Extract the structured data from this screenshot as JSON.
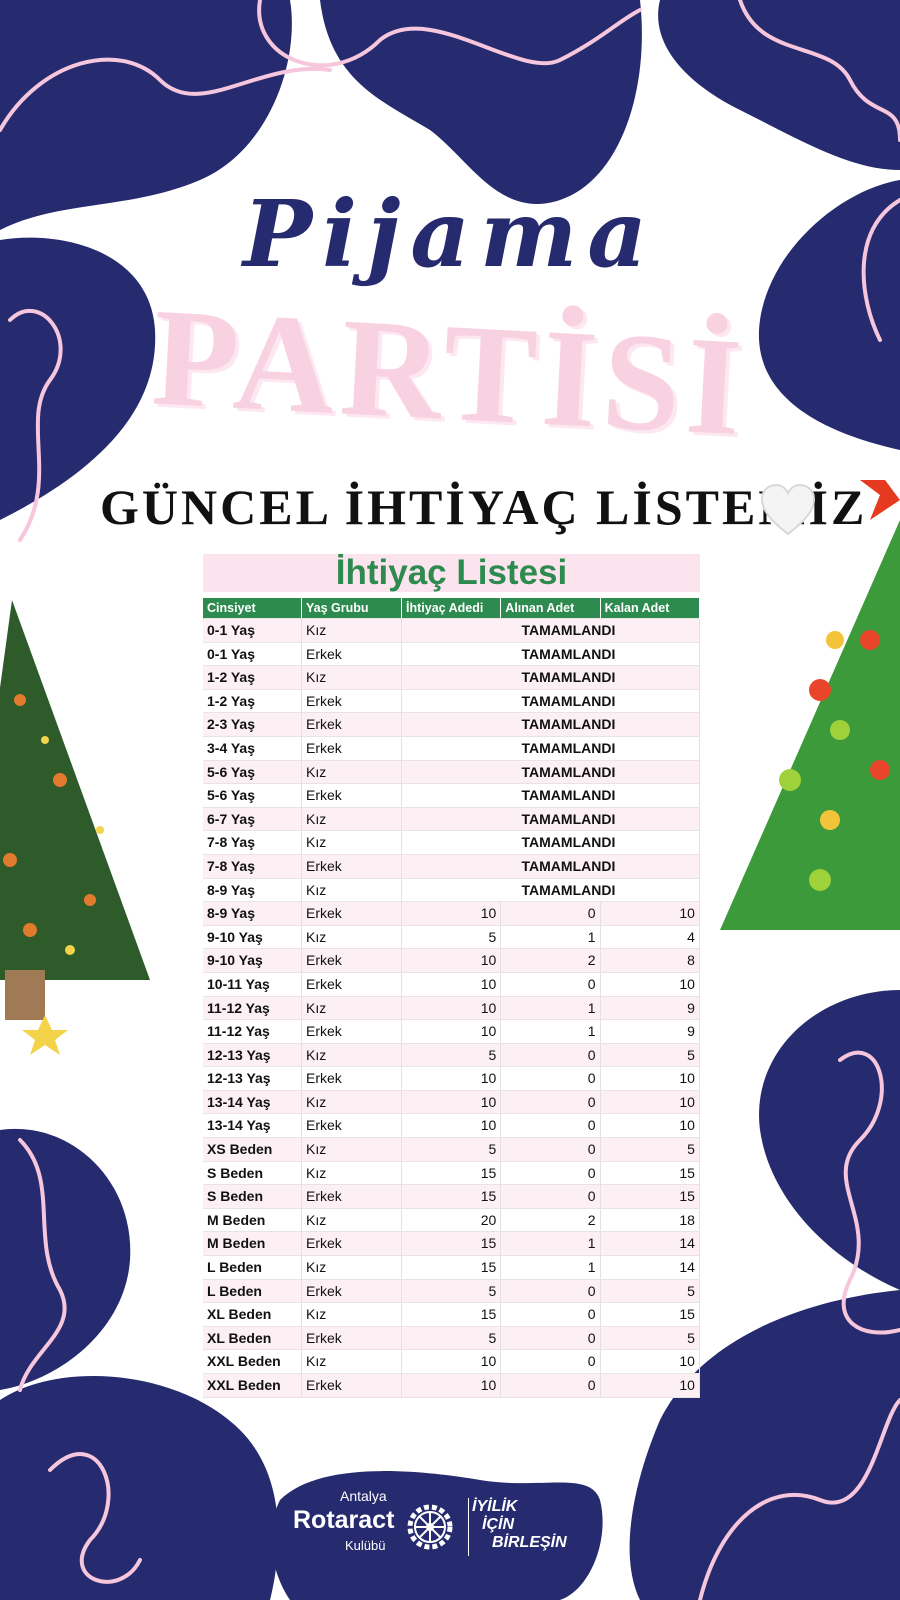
{
  "poster": {
    "title_script": "Pijama",
    "title_big": "PARTİSİ",
    "subtitle": "GÜNCEL İHTİYAÇ LİSTEMİZ",
    "heart_icon": "white-heart-icon",
    "colors": {
      "navy": "#262a6e",
      "pink": "#f9d2e2",
      "green": "#2e8b4f",
      "row_pink": "#fdf0f5"
    }
  },
  "table": {
    "title": "İhtiyaç Listesi",
    "columns": [
      "Cinsiyet",
      "Yaş Grubu",
      "İhtiyaç Adedi",
      "Alınan Adet",
      "Kalan Adet"
    ],
    "rows": [
      {
        "group": "0-1 Yaş",
        "gender": "Kız",
        "status": "TAMAMLANDI"
      },
      {
        "group": "0-1 Yaş",
        "gender": "Erkek",
        "status": "TAMAMLANDI"
      },
      {
        "group": "1-2 Yaş",
        "gender": "Kız",
        "status": "TAMAMLANDI"
      },
      {
        "group": "1-2 Yaş",
        "gender": "Erkek",
        "status": "TAMAMLANDI"
      },
      {
        "group": "2-3 Yaş",
        "gender": "Erkek",
        "status": "TAMAMLANDI"
      },
      {
        "group": "3-4 Yaş",
        "gender": "Erkek",
        "status": "TAMAMLANDI"
      },
      {
        "group": "5-6 Yaş",
        "gender": "Kız",
        "status": "TAMAMLANDI"
      },
      {
        "group": "5-6 Yaş",
        "gender": "Erkek",
        "status": "TAMAMLANDI"
      },
      {
        "group": "6-7 Yaş",
        "gender": "Kız",
        "status": "TAMAMLANDI"
      },
      {
        "group": "7-8 Yaş",
        "gender": "Kız",
        "status": "TAMAMLANDI"
      },
      {
        "group": "7-8 Yaş",
        "gender": "Erkek",
        "status": "TAMAMLANDI"
      },
      {
        "group": "8-9 Yaş",
        "gender": "Kız",
        "status": "TAMAMLANDI"
      },
      {
        "group": "8-9 Yaş",
        "gender": "Erkek",
        "need": "10",
        "received": "0",
        "remaining": "10"
      },
      {
        "group": "9-10 Yaş",
        "gender": "Kız",
        "need": "5",
        "received": "1",
        "remaining": "4"
      },
      {
        "group": "9-10 Yaş",
        "gender": "Erkek",
        "need": "10",
        "received": "2",
        "remaining": "8"
      },
      {
        "group": "10-11 Yaş",
        "gender": "Erkek",
        "need": "10",
        "received": "0",
        "remaining": "10"
      },
      {
        "group": "11-12 Yaş",
        "gender": "Kız",
        "need": "10",
        "received": "1",
        "remaining": "9"
      },
      {
        "group": "11-12 Yaş",
        "gender": "Erkek",
        "need": "10",
        "received": "1",
        "remaining": "9"
      },
      {
        "group": "12-13 Yaş",
        "gender": "Kız",
        "need": "5",
        "received": "0",
        "remaining": "5"
      },
      {
        "group": "12-13 Yaş",
        "gender": "Erkek",
        "need": "10",
        "received": "0",
        "remaining": "10"
      },
      {
        "group": "13-14 Yaş",
        "gender": "Kız",
        "need": "10",
        "received": "0",
        "remaining": "10"
      },
      {
        "group": "13-14 Yaş",
        "gender": "Erkek",
        "need": "10",
        "received": "0",
        "remaining": "10"
      },
      {
        "group": "XS Beden",
        "gender": "Kız",
        "need": "5",
        "received": "0",
        "remaining": "5"
      },
      {
        "group": "S Beden",
        "gender": "Kız",
        "need": "15",
        "received": "0",
        "remaining": "15"
      },
      {
        "group": "S Beden",
        "gender": "Erkek",
        "need": "15",
        "received": "0",
        "remaining": "15"
      },
      {
        "group": "M Beden",
        "gender": "Kız",
        "need": "20",
        "received": "2",
        "remaining": "18"
      },
      {
        "group": "M Beden",
        "gender": "Erkek",
        "need": "15",
        "received": "1",
        "remaining": "14"
      },
      {
        "group": "L Beden",
        "gender": "Kız",
        "need": "15",
        "received": "1",
        "remaining": "14"
      },
      {
        "group": "L Beden",
        "gender": "Erkek",
        "need": "5",
        "received": "0",
        "remaining": "5"
      },
      {
        "group": "XL Beden",
        "gender": "Kız",
        "need": "15",
        "received": "0",
        "remaining": "15"
      },
      {
        "group": "XL Beden",
        "gender": "Erkek",
        "need": "5",
        "received": "0",
        "remaining": "5"
      },
      {
        "group": "XXL Beden",
        "gender": "Kız",
        "need": "10",
        "received": "0",
        "remaining": "10"
      },
      {
        "group": "XXL Beden",
        "gender": "Erkek",
        "need": "10",
        "received": "0",
        "remaining": "10"
      }
    ]
  },
  "logo": {
    "city": "Antalya",
    "name": "Rotaract",
    "club": "Kulübü",
    "slogan": [
      "İYİLİK",
      "İÇİN",
      "BİRLEŞİN"
    ],
    "icon": "rotary-gear-icon"
  }
}
